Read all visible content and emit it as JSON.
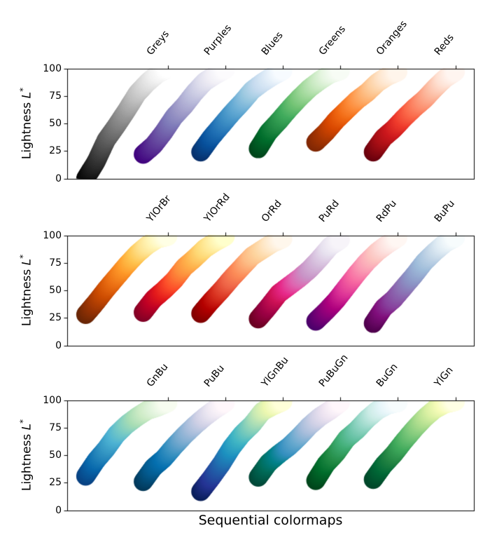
{
  "chart_data": {
    "type": "scatter",
    "title": "",
    "xlabel": "Sequential colormaps",
    "ylabel": {
      "prefix": "Lightness ",
      "symbol": "L",
      "superscript": "*"
    },
    "ylim": [
      0,
      100
    ],
    "yticks": [
      0,
      25,
      50,
      75,
      100
    ],
    "legend": "none",
    "grid": false,
    "band_offset": 0.7,
    "band_span": 1.0,
    "x_margin": 0.225,
    "marker_radius_px": 13.5,
    "samples_per_band": 110,
    "axis_color": "#000000",
    "background": "#ffffff",
    "rows": [
      {
        "colormaps": [
          {
            "name": "Greys",
            "colors": [
              "#000000",
              "#252525",
              "#525252",
              "#737373",
              "#969696",
              "#bdbdbd",
              "#d9d9d9",
              "#f0f0f0",
              "#ffffff"
            ],
            "lightness": [
              0,
              15,
              35,
              48,
              62,
              77,
              87,
              95,
              100
            ]
          },
          {
            "name": "Purples",
            "colors": [
              "#3f007d",
              "#54278f",
              "#6a51a3",
              "#807dba",
              "#9e9ac8",
              "#bcbddc",
              "#dadaeb",
              "#efedf5",
              "#fcfbfd"
            ],
            "lightness": [
              22,
              30,
              42,
              56,
              66,
              78,
              88,
              94,
              99
            ]
          },
          {
            "name": "Blues",
            "colors": [
              "#08306b",
              "#08519c",
              "#2171b5",
              "#4292c6",
              "#6baed6",
              "#9ecae1",
              "#c6dbef",
              "#deebf7",
              "#f7fbff"
            ],
            "lightness": [
              24,
              37,
              48,
              59,
              69,
              80,
              87,
              93,
              98
            ]
          },
          {
            "name": "Greens",
            "colors": [
              "#00441b",
              "#006d2c",
              "#238b45",
              "#41ab5d",
              "#74c476",
              "#a1d99b",
              "#c7e9c0",
              "#e5f5e0",
              "#f7fcf5"
            ],
            "lightness": [
              27,
              42,
              52,
              63,
              73,
              82,
              89,
              95,
              98
            ]
          },
          {
            "name": "Oranges",
            "colors": [
              "#7f2704",
              "#a63603",
              "#d94801",
              "#f16913",
              "#fd8d3c",
              "#fdae6b",
              "#fdd0a2",
              "#fee6ce",
              "#fff5eb"
            ],
            "lightness": [
              33,
              42,
              53,
              62,
              71,
              78,
              87,
              93,
              97
            ]
          },
          {
            "name": "Reds",
            "colors": [
              "#67000d",
              "#a50f15",
              "#cb181d",
              "#ef3b2c",
              "#fb6a4a",
              "#fc9272",
              "#fcbba1",
              "#fee0d2",
              "#fff5f0"
            ],
            "lightness": [
              24,
              37,
              45,
              55,
              64,
              72,
              82,
              91,
              97
            ]
          }
        ]
      },
      {
        "colormaps": [
          {
            "name": "YlOrBr",
            "colors": [
              "#662506",
              "#993404",
              "#cc4c02",
              "#ec7014",
              "#fe9929",
              "#fec44f",
              "#fee391",
              "#fff7bc",
              "#ffffe5"
            ],
            "lightness": [
              28,
              39,
              51,
              62,
              73,
              83,
              91,
              97,
              99
            ]
          },
          {
            "name": "YlOrRd",
            "colors": [
              "#800026",
              "#bd0026",
              "#e31a1c",
              "#fc4e2a",
              "#fd8d3c",
              "#feb24c",
              "#fed976",
              "#ffeda0",
              "#ffffcc"
            ],
            "lightness": [
              30,
              42,
              50,
              59,
              71,
              79,
              88,
              94,
              99
            ]
          },
          {
            "name": "OrRd",
            "colors": [
              "#7f0000",
              "#b30000",
              "#d7301f",
              "#ef6548",
              "#fc8d59",
              "#fdbb84",
              "#fdd49e",
              "#fee8c8",
              "#fff7ec"
            ],
            "lightness": [
              29,
              40,
              50,
              61,
              71,
              81,
              87,
              93,
              97
            ]
          },
          {
            "name": "PuRd",
            "colors": [
              "#67001f",
              "#980043",
              "#ce1256",
              "#e7298a",
              "#df65b0",
              "#c994c7",
              "#d4b9da",
              "#e7e1ef",
              "#f7f4f9"
            ],
            "lightness": [
              24,
              35,
              47,
              54,
              61,
              69,
              79,
              90,
              96
            ]
          },
          {
            "name": "RdPu",
            "colors": [
              "#49006a",
              "#7a0177",
              "#ae017e",
              "#dd3497",
              "#f768a1",
              "#fa9fb5",
              "#fcc5c0",
              "#fde0dd",
              "#fff7f3"
            ],
            "lightness": [
              22,
              31,
              41,
              53,
              65,
              76,
              85,
              92,
              98
            ]
          },
          {
            "name": "BuPu",
            "colors": [
              "#4d004b",
              "#810f7c",
              "#88419d",
              "#8c6bb1",
              "#8c96c6",
              "#9ebcda",
              "#bfd3e6",
              "#e0ecf4",
              "#f7fcfd"
            ],
            "lightness": [
              20,
              34,
              42,
              53,
              64,
              76,
              85,
              93,
              98
            ]
          }
        ]
      },
      {
        "colormaps": [
          {
            "name": "GnBu",
            "colors": [
              "#084081",
              "#0868ac",
              "#2b8cbe",
              "#4eb3d3",
              "#7bccc4",
              "#a8ddb5",
              "#ccebc5",
              "#e0f3db",
              "#f7fcf0"
            ],
            "lightness": [
              31,
              45,
              56,
              69,
              78,
              85,
              91,
              94,
              98
            ]
          },
          {
            "name": "PuBu",
            "colors": [
              "#023858",
              "#045a8d",
              "#0570b0",
              "#3690c0",
              "#74a9cf",
              "#a6bddb",
              "#d0d1e6",
              "#ece7f2",
              "#fff7fb"
            ],
            "lightness": [
              26,
              39,
              47,
              58,
              68,
              77,
              85,
              92,
              98
            ]
          },
          {
            "name": "YlGnBu",
            "colors": [
              "#081d58",
              "#253494",
              "#225ea8",
              "#1d91c0",
              "#41b6c4",
              "#7fcdbb",
              "#c7e9b4",
              "#edf8b1",
              "#ffffd9"
            ],
            "lightness": [
              17,
              29,
              42,
              57,
              69,
              78,
              90,
              95,
              99
            ]
          },
          {
            "name": "PuBuGn",
            "colors": [
              "#014636",
              "#016c59",
              "#02818a",
              "#3690c0",
              "#67a9cf",
              "#a6bddb",
              "#d0d1e6",
              "#ece2f0",
              "#fff7fb"
            ],
            "lightness": [
              30,
              43,
              51,
              58,
              67,
              77,
              85,
              91,
              98
            ]
          },
          {
            "name": "BuGn",
            "colors": [
              "#00441b",
              "#006d2c",
              "#238b45",
              "#41ae76",
              "#66c2a4",
              "#99d8c9",
              "#ccece6",
              "#e5f5f9",
              "#f7fcfd"
            ],
            "lightness": [
              27,
              42,
              52,
              65,
              73,
              83,
              91,
              96,
              98
            ]
          },
          {
            "name": "YlGn",
            "colors": [
              "#004529",
              "#006837",
              "#238443",
              "#41ab5d",
              "#78c679",
              "#addd8e",
              "#d9f0a3",
              "#f7fcb9",
              "#ffffe5"
            ],
            "lightness": [
              28,
              41,
              51,
              63,
              74,
              84,
              92,
              97,
              99
            ]
          }
        ]
      }
    ]
  }
}
